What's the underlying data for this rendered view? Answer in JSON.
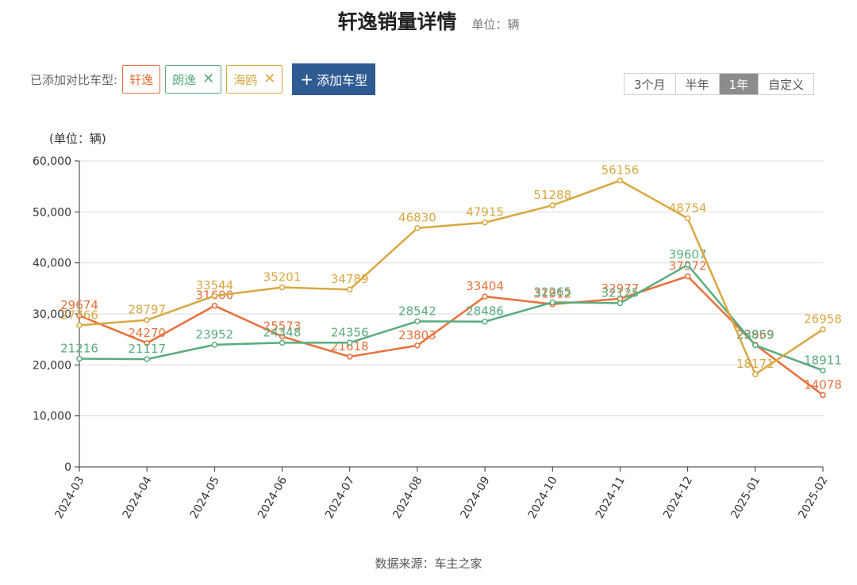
{
  "header": {
    "title": "轩逸销量详情",
    "unit": "单位：辆"
  },
  "compare": {
    "label": "已添加对比车型:",
    "chips": [
      {
        "name": "轩逸",
        "color": "#e8703a",
        "removable": false
      },
      {
        "name": "朗逸",
        "color": "#5aac7e",
        "removable": true
      },
      {
        "name": "海鸥",
        "color": "#d8a842",
        "removable": true
      }
    ],
    "remove_icon": "✕",
    "add_button": {
      "icon": "+",
      "label": "添加车型"
    }
  },
  "range": {
    "options": [
      "3个月",
      "半年",
      "1年",
      "自定义"
    ],
    "selected": "1年"
  },
  "chart_data": {
    "type": "line",
    "y_unit_label": "(单位：辆)",
    "x": [
      "2024-03",
      "2024-04",
      "2024-05",
      "2024-06",
      "2024-07",
      "2024-08",
      "2024-09",
      "2024-10",
      "2024-11",
      "2024-12",
      "2025-01",
      "2025-02"
    ],
    "ylim": [
      0,
      60000
    ],
    "yticks": [
      0,
      10000,
      20000,
      30000,
      40000,
      50000,
      60000
    ],
    "ytick_labels": [
      "0",
      "10,000",
      "20,000",
      "30,000",
      "40,000",
      "50,000",
      "60,000"
    ],
    "grid": true,
    "series": [
      {
        "name": "轩逸",
        "color": "#e8703a",
        "values": [
          29674,
          24270,
          31600,
          25573,
          21618,
          23803,
          33404,
          31912,
          32977,
          37372,
          23969,
          14078
        ]
      },
      {
        "name": "朗逸",
        "color": "#5aac7e",
        "values": [
          21216,
          21117,
          23952,
          24348,
          24356,
          28542,
          28486,
          32265,
          32125,
          39607,
          23859,
          18911
        ]
      },
      {
        "name": "海鸥",
        "color": "#d8a842",
        "values": [
          27766,
          28797,
          33544,
          35201,
          34789,
          46830,
          47915,
          51288,
          56156,
          48754,
          18171,
          26958
        ]
      }
    ]
  },
  "footer": {
    "source": "数据来源：车主之家"
  }
}
